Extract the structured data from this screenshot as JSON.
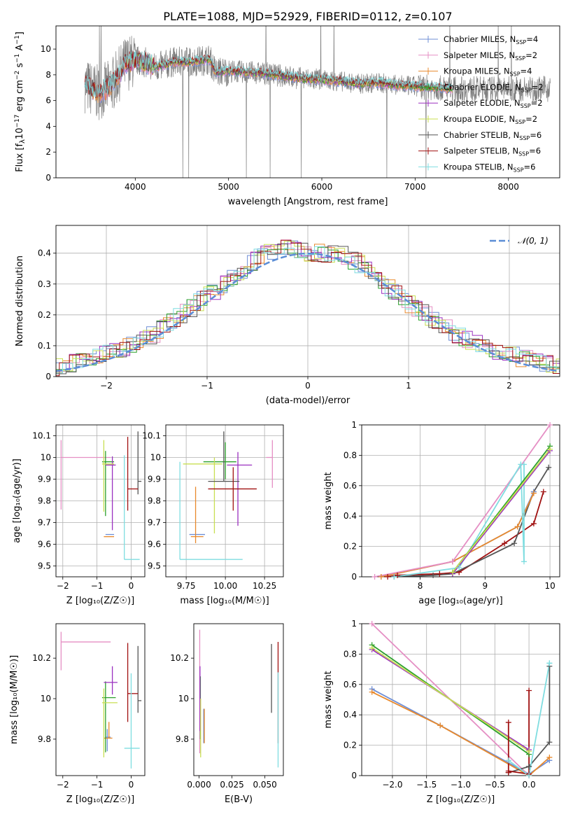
{
  "title": "PLATE=1088, MJD=52929, FIBERID=0112, z=0.107",
  "colors": {
    "chabrier_miles": "#6f8fd6",
    "salpeter_miles": "#e58fc4",
    "kroupa_miles": "#e8892c",
    "chabrier_elodie": "#2ca02c",
    "salpeter_elodie": "#9b30c0",
    "kroupa_elodie": "#c8df52",
    "chabrier_stelib": "#555555",
    "salpeter_stelib": "#a01010",
    "kroupa_stelib": "#7fdde0",
    "data": "#808080",
    "gauss": "#5b8dd6"
  },
  "chart_data": [
    {
      "id": "spectrum",
      "type": "line",
      "xlabel": "wavelength [Angstrom, rest frame]",
      "ylabel": "Flux [f_λ10^-17 erg cm^-2 s^-1 A^-1]",
      "xlim": [
        3150,
        8550
      ],
      "ylim": [
        0,
        11.8
      ],
      "xticks": [
        4000,
        5000,
        6000,
        7000,
        8000
      ],
      "yticks": [
        0,
        2,
        4,
        6,
        8,
        10
      ],
      "grid": false,
      "legend_position": "top-right",
      "continuum_x": [
        3460,
        3600,
        3700,
        3780,
        3900,
        4000,
        4100,
        4200,
        4300,
        4400,
        4600,
        4800,
        4860,
        5000,
        5200,
        5400,
        5600,
        5800,
        6000,
        6200,
        6400,
        6600,
        6800,
        7000,
        7200,
        7400
      ],
      "continuum_y": [
        7.2,
        6.6,
        6.9,
        7.5,
        8.9,
        9.1,
        9.0,
        8.6,
        8.7,
        9.0,
        9.0,
        9.2,
        8.2,
        8.3,
        8.2,
        8.1,
        7.9,
        7.7,
        7.6,
        7.5,
        7.3,
        7.4,
        7.2,
        7.1,
        7.0,
        6.9
      ],
      "series": [
        {
          "name": "Chabrier MILES, N_SSP=4",
          "color_key": "chabrier_miles"
        },
        {
          "name": "Salpeter MILES, N_SSP=2",
          "color_key": "salpeter_miles"
        },
        {
          "name": "Kroupa MILES, N_SSP=4",
          "color_key": "kroupa_miles"
        },
        {
          "name": "Chabrier ELODIE, N_SSP=2",
          "color_key": "chabrier_elodie"
        },
        {
          "name": "Salpeter ELODIE, N_SSP=2",
          "color_key": "salpeter_elodie"
        },
        {
          "name": "Kroupa ELODIE, N_SSP=2",
          "color_key": "kroupa_elodie"
        },
        {
          "name": "Chabrier STELIB, N_SSP=6",
          "color_key": "chabrier_stelib"
        },
        {
          "name": "Salpeter STELIB, N_SSP=6",
          "color_key": "salpeter_stelib"
        },
        {
          "name": "Kroupa STELIB, N_SSP=6",
          "color_key": "kroupa_stelib"
        }
      ]
    },
    {
      "id": "residuals",
      "type": "histogram",
      "xlabel": "(data-model)/error",
      "ylabel": "Normed distribution",
      "xlim": [
        -2.5,
        2.5
      ],
      "ylim": [
        0,
        0.49
      ],
      "xticks": [
        -2,
        -1,
        0,
        1,
        2
      ],
      "yticks": [
        0.0,
        0.1,
        0.2,
        0.3,
        0.4
      ],
      "grid": true,
      "legend_position": "top-right",
      "legend": "𝒩(0, 1)",
      "bin_width": 0.1,
      "profile_x": [
        -2.5,
        -2.0,
        -1.5,
        -1.0,
        -0.5,
        -0.3,
        0.0,
        0.3,
        0.5,
        1.0,
        1.5,
        2.0,
        2.5
      ],
      "profile_y": [
        0.03,
        0.07,
        0.14,
        0.26,
        0.38,
        0.42,
        0.4,
        0.4,
        0.37,
        0.24,
        0.13,
        0.07,
        0.03
      ]
    },
    {
      "id": "age_vs_Z",
      "type": "errorbar",
      "xlabel": "Z [log₁₀(Z/Z☉)]",
      "ylabel": "age  [log₁₀(age/yr)]",
      "xlim": [
        -2.2,
        0.4
      ],
      "ylim": [
        9.45,
        10.15
      ],
      "xticks": [
        -2,
        -1,
        0
      ],
      "yticks": [
        9.5,
        9.6,
        9.7,
        9.8,
        9.9,
        10.0,
        10.1
      ],
      "grid": true,
      "points": [
        {
          "color_key": "chabrier_miles",
          "x": -0.6,
          "xerr": [
            0.15,
            0.1
          ],
          "y": 9.645,
          "yerr": [
            0.0,
            0.0
          ]
        },
        {
          "color_key": "salpeter_miles",
          "x": -2.05,
          "xerr": [
            0.0,
            1.45
          ],
          "y": 10.0,
          "yerr": [
            0.24,
            0.08
          ]
        },
        {
          "color_key": "kroupa_miles",
          "x": -0.7,
          "xerr": [
            0.1,
            0.2
          ],
          "y": 9.635,
          "yerr": [
            0.0,
            0.0
          ]
        },
        {
          "color_key": "chabrier_elodie",
          "x": -0.75,
          "xerr": [
            0.1,
            0.25
          ],
          "y": 9.98,
          "yerr": [
            0.25,
            0.05
          ]
        },
        {
          "color_key": "salpeter_elodie",
          "x": -0.55,
          "xerr": [
            0.2,
            0.1
          ],
          "y": 9.965,
          "yerr": [
            0.3,
            0.04
          ]
        },
        {
          "color_key": "kroupa_elodie",
          "x": -0.8,
          "xerr": [
            0.05,
            0.3
          ],
          "y": 9.97,
          "yerr": [
            0.22,
            0.11
          ]
        },
        {
          "color_key": "chabrier_stelib",
          "x": 0.2,
          "xerr": [
            0.0,
            0.1
          ],
          "y": 9.89,
          "yerr": [
            0.06,
            0.23
          ]
        },
        {
          "color_key": "salpeter_stelib",
          "x": -0.1,
          "xerr": [
            0.0,
            0.3
          ],
          "y": 9.855,
          "yerr": [
            0.1,
            0.24
          ]
        },
        {
          "color_key": "kroupa_stelib",
          "x": -0.2,
          "xerr": [
            0.0,
            0.45
          ],
          "y": 9.53,
          "yerr": [
            0.0,
            0.48
          ]
        }
      ]
    },
    {
      "id": "age_vs_mass",
      "type": "errorbar",
      "xlabel": "mass [log₁₀(M/M☉)]",
      "ylabel": "",
      "xlim": [
        9.62,
        10.37
      ],
      "ylim": [
        9.45,
        10.15
      ],
      "xticks": [
        9.75,
        10.0,
        10.25
      ],
      "tick_labels": [
        "9.75",
        "10.00",
        "10.25"
      ],
      "yticks": [
        9.5,
        9.6,
        9.7,
        9.8,
        9.9,
        10.0,
        10.1
      ],
      "grid": true,
      "points": [
        {
          "color_key": "chabrier_miles",
          "x": 9.82,
          "xerr": [
            0.05,
            0.05
          ],
          "y": 9.645,
          "yerr": [
            0.0,
            0.0
          ]
        },
        {
          "color_key": "salpeter_miles",
          "x": 10.3,
          "xerr": [
            0.04,
            0.0
          ],
          "y": 10.0,
          "yerr": [
            0.14,
            0.08
          ]
        },
        {
          "color_key": "kroupa_miles",
          "x": 9.81,
          "xerr": [
            0.03,
            0.05
          ],
          "y": 9.635,
          "yerr": [
            0.03,
            0.23
          ]
        },
        {
          "color_key": "chabrier_elodie",
          "x": 10.0,
          "xerr": [
            0.14,
            0.07
          ],
          "y": 9.98,
          "yerr": [
            0.08,
            0.09
          ]
        },
        {
          "color_key": "salpeter_elodie",
          "x": 10.08,
          "xerr": [
            0.07,
            0.09
          ],
          "y": 9.965,
          "yerr": [
            0.28,
            0.06
          ]
        },
        {
          "color_key": "kroupa_elodie",
          "x": 9.93,
          "xerr": [
            0.2,
            0.05
          ],
          "y": 9.97,
          "yerr": [
            0.32,
            0.03
          ]
        },
        {
          "color_key": "chabrier_stelib",
          "x": 9.99,
          "xerr": [
            0.1,
            0.1
          ],
          "y": 9.89,
          "yerr": [
            0.0,
            0.23
          ]
        },
        {
          "color_key": "salpeter_stelib",
          "x": 10.05,
          "xerr": [
            0.16,
            0.15
          ],
          "y": 9.855,
          "yerr": [
            0.1,
            0.1
          ]
        },
        {
          "color_key": "kroupa_stelib",
          "x": 9.71,
          "xerr": [
            0.0,
            0.4
          ],
          "y": 9.53,
          "yerr": [
            0.0,
            0.45
          ]
        }
      ]
    },
    {
      "id": "mass_weight_vs_age",
      "type": "line",
      "xlabel": "age  [log₁₀(age/yr)]",
      "ylabel": "mass weight",
      "xlim": [
        7.1,
        10.15
      ],
      "ylim": [
        0,
        1.0
      ],
      "xticks": [
        8,
        9,
        10
      ],
      "yticks": [
        0.0,
        0.2,
        0.4,
        0.6,
        0.8,
        1.0
      ],
      "grid": true,
      "series": [
        {
          "color_key": "salpeter_stelib",
          "x": [
            7.5,
            7.65,
            8.3,
            8.6,
            9.3,
            9.75,
            9.9
          ],
          "y": [
            0.0,
            0.01,
            0.02,
            0.03,
            0.22,
            0.35,
            0.56
          ]
        },
        {
          "color_key": "chabrier_stelib",
          "x": [
            7.6,
            8.2,
            8.5,
            9.45,
            9.75,
            9.98
          ],
          "y": [
            0.0,
            0.01,
            0.02,
            0.22,
            0.56,
            0.72
          ]
        },
        {
          "color_key": "chabrier_miles",
          "x": [
            7.4,
            8.5,
            9.5,
            9.75
          ],
          "y": [
            0.0,
            0.1,
            0.33,
            0.56
          ]
        },
        {
          "color_key": "kroupa_miles",
          "x": [
            7.4,
            8.5,
            9.5,
            9.75
          ],
          "y": [
            0.0,
            0.1,
            0.33,
            0.55
          ]
        },
        {
          "color_key": "salpeter_miles",
          "x": [
            7.3,
            8.5,
            10.0
          ],
          "y": [
            0.0,
            0.1,
            1.0
          ]
        },
        {
          "color_key": "kroupa_stelib",
          "x": [
            7.6,
            8.6,
            9.55,
            9.6,
            9.6
          ],
          "y": [
            0.0,
            0.06,
            0.74,
            0.1,
            0.74
          ]
        },
        {
          "color_key": "chabrier_elodie",
          "x": [
            8.5,
            10.0
          ],
          "y": [
            0.03,
            0.86
          ]
        },
        {
          "color_key": "salpeter_elodie",
          "x": [
            8.5,
            10.0
          ],
          "y": [
            0.02,
            0.83
          ]
        },
        {
          "color_key": "kroupa_elodie",
          "x": [
            8.5,
            10.0
          ],
          "y": [
            0.03,
            0.84
          ]
        }
      ]
    },
    {
      "id": "mass_vs_Z",
      "type": "errorbar",
      "xlabel": "Z [log₁₀(Z/Z☉)]",
      "ylabel": "mass [log₁₀(M/M☉)]",
      "xlim": [
        -2.2,
        0.4
      ],
      "ylim": [
        9.62,
        10.37
      ],
      "xticks": [
        -2,
        -1,
        0
      ],
      "yticks": [
        9.8,
        10.0,
        10.2
      ],
      "grid": false,
      "points": [
        {
          "color_key": "chabrier_miles",
          "x": -0.7,
          "xerr": [
            0.05,
            0.1
          ],
          "y": 9.81,
          "yerr": [
            0.07,
            0.04
          ]
        },
        {
          "color_key": "salpeter_miles",
          "x": -2.05,
          "xerr": [
            0.0,
            1.45
          ],
          "y": 10.28,
          "yerr": [
            0.14,
            0.05
          ]
        },
        {
          "color_key": "kroupa_miles",
          "x": -0.65,
          "xerr": [
            0.15,
            0.1
          ],
          "y": 9.805,
          "yerr": [
            0.0,
            0.08
          ]
        },
        {
          "color_key": "chabrier_elodie",
          "x": -0.75,
          "xerr": [
            0.1,
            0.3
          ],
          "y": 10.005,
          "yerr": [
            0.27,
            0.08
          ]
        },
        {
          "color_key": "salpeter_elodie",
          "x": -0.55,
          "xerr": [
            0.25,
            0.15
          ],
          "y": 10.08,
          "yerr": [
            0.06,
            0.08
          ]
        },
        {
          "color_key": "kroupa_elodie",
          "x": -0.8,
          "xerr": [
            0.05,
            0.4
          ],
          "y": 9.98,
          "yerr": [
            0.27,
            0.07
          ]
        },
        {
          "color_key": "chabrier_stelib",
          "x": 0.2,
          "xerr": [
            0.0,
            0.1
          ],
          "y": 9.99,
          "yerr": [
            0.06,
            0.27
          ]
        },
        {
          "color_key": "salpeter_stelib",
          "x": -0.1,
          "xerr": [
            0.0,
            0.3
          ],
          "y": 10.025,
          "yerr": [
            0.14,
            0.25
          ]
        },
        {
          "color_key": "kroupa_stelib",
          "x": 0.0,
          "xerr": [
            0.2,
            0.25
          ],
          "y": 9.755,
          "yerr": [
            0.1,
            0.37
          ]
        }
      ]
    },
    {
      "id": "mass_vs_ebv",
      "type": "errorbar",
      "xlabel": "E(B-V)",
      "ylabel": "",
      "xlim": [
        -0.004,
        0.064
      ],
      "ylim": [
        9.62,
        10.37
      ],
      "xticks": [
        0.0,
        0.025,
        0.05
      ],
      "tick_labels": [
        "0.000",
        "0.025",
        "0.050"
      ],
      "yticks": [
        9.8,
        10.0,
        10.2
      ],
      "grid": false,
      "points": [
        {
          "color_key": "chabrier_miles",
          "x": 0.0035,
          "xerr": [
            0.0,
            0.0
          ],
          "y": 9.86,
          "yerr": [
            0.08,
            0.09
          ]
        },
        {
          "color_key": "salpeter_miles",
          "x": 0.0005,
          "xerr": [
            0.0,
            0.0
          ],
          "y": 10.05,
          "yerr": [
            0.32,
            0.29
          ]
        },
        {
          "color_key": "kroupa_miles",
          "x": 0.004,
          "xerr": [
            0.0,
            0.0
          ],
          "y": 9.86,
          "yerr": [
            0.08,
            0.09
          ]
        },
        {
          "color_key": "chabrier_elodie",
          "x": 0.001,
          "xerr": [
            0.0,
            0.0
          ],
          "y": 10.0,
          "yerr": [
            0.2,
            0.11
          ]
        },
        {
          "color_key": "salpeter_elodie",
          "x": 0.0007,
          "xerr": [
            0.0,
            0.0
          ],
          "y": 10.08,
          "yerr": [
            0.24,
            0.08
          ]
        },
        {
          "color_key": "kroupa_elodie",
          "x": 0.0012,
          "xerr": [
            0.0,
            0.0
          ],
          "y": 9.9,
          "yerr": [
            0.19,
            0.1
          ]
        },
        {
          "color_key": "chabrier_stelib",
          "x": 0.055,
          "xerr": [
            0.0,
            0.0
          ],
          "y": 10.1,
          "yerr": [
            0.17,
            0.17
          ]
        },
        {
          "color_key": "salpeter_stelib",
          "x": 0.06,
          "xerr": [
            0.0,
            0.0
          ],
          "y": 10.1,
          "yerr": [
            0.32,
            0.18
          ]
        },
        {
          "color_key": "kroupa_stelib",
          "x": 0.06,
          "xerr": [
            0.0,
            0.0
          ],
          "y": 9.9,
          "yerr": [
            0.24,
            0.23
          ]
        }
      ]
    },
    {
      "id": "mass_weight_vs_Z",
      "type": "line",
      "xlabel": "Z [log₁₀(Z/Z☉)]",
      "ylabel": "mass weight",
      "xlim": [
        -2.45,
        0.45
      ],
      "ylim": [
        0,
        1.0
      ],
      "xticks": [
        -2.0,
        -1.5,
        -1.0,
        -0.5,
        0.0
      ],
      "tick_labels": [
        "−2.0",
        "−1.5",
        "−1.0",
        "−0.5",
        "0.0"
      ],
      "yticks": [
        0.0,
        0.2,
        0.4,
        0.6,
        0.8,
        1.0
      ],
      "grid": true,
      "series": [
        {
          "color_key": "chabrier_miles",
          "x": [
            -2.3,
            -1.3,
            0.0,
            0.3
          ],
          "y": [
            0.57,
            0.33,
            0.01,
            0.1
          ]
        },
        {
          "color_key": "kroupa_miles",
          "x": [
            -2.3,
            -1.3,
            0.0,
            0.3
          ],
          "y": [
            0.55,
            0.33,
            0.0,
            0.12
          ]
        },
        {
          "color_key": "salpeter_miles",
          "x": [
            -2.3,
            0.0
          ],
          "y": [
            1.0,
            0.0
          ]
        },
        {
          "color_key": "chabrier_elodie",
          "x": [
            -2.3,
            0.0
          ],
          "y": [
            0.86,
            0.14
          ]
        },
        {
          "color_key": "salpeter_elodie",
          "x": [
            -2.3,
            0.0
          ],
          "y": [
            0.83,
            0.17
          ]
        },
        {
          "color_key": "kroupa_elodie",
          "x": [
            -2.3,
            0.0
          ],
          "y": [
            0.84,
            0.16
          ]
        },
        {
          "color_key": "chabrier_stelib",
          "x": [
            -0.3,
            -0.3,
            0.0,
            0.0,
            0.3,
            0.3
          ],
          "y": [
            0.02,
            0.02,
            0.06,
            0.06,
            0.22,
            0.72
          ]
        },
        {
          "color_key": "salpeter_stelib",
          "x": [
            -0.3,
            -0.3,
            -0.3,
            0.0,
            0.0
          ],
          "y": [
            0.02,
            0.35,
            0.03,
            0.01,
            0.56
          ]
        },
        {
          "color_key": "kroupa_stelib",
          "x": [
            -0.3,
            0.0,
            0.3,
            0.3
          ],
          "y": [
            0.1,
            0.0,
            0.74,
            0.74
          ]
        }
      ]
    }
  ]
}
